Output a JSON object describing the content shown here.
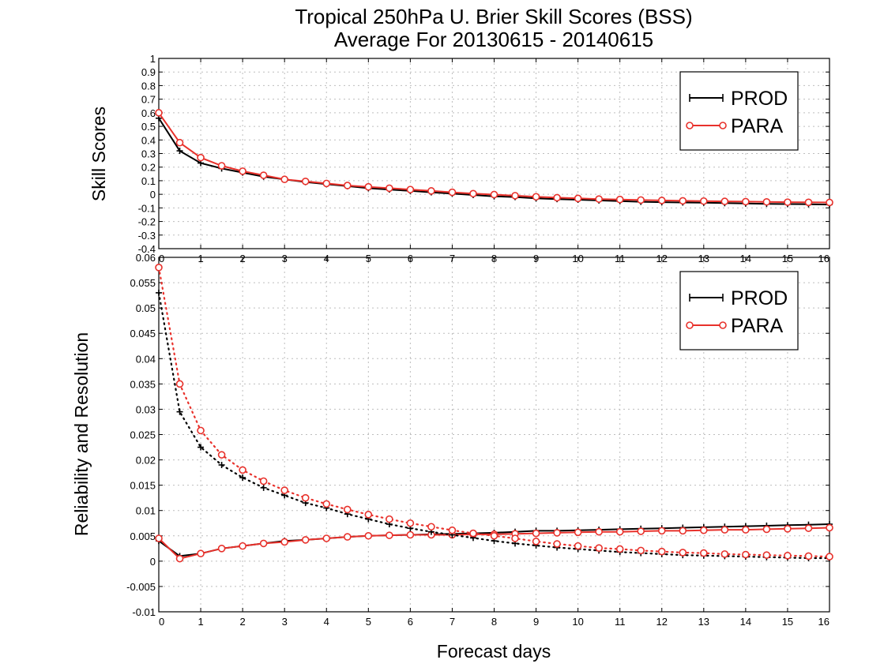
{
  "title_line1": "Tropical 250hPa U. Brier Skill Scores (BSS)",
  "title_line2": "Average For 20130615 - 20140615",
  "xlabel": "Forecast days",
  "colors": {
    "prod": "#000000",
    "para": "#e8312b",
    "grid": "#bdbdbd"
  },
  "chart_data": [
    {
      "type": "line",
      "ylabel": "Skill Scores",
      "xlim": [
        0,
        16
      ],
      "ylim": [
        -0.4,
        1
      ],
      "yticks": [
        -0.4,
        -0.3,
        -0.2,
        -0.1,
        0,
        0.1,
        0.2,
        0.3,
        0.4,
        0.5,
        0.6,
        0.7,
        0.8,
        0.9,
        1
      ],
      "ytick_labels": [
        "-0.4",
        "-0.3",
        "-0.2",
        "-0.1",
        "0",
        "0.1",
        "0.2",
        "0.3",
        "0.4",
        "0.5",
        "0.6",
        "0.7",
        "0.8",
        "0.9",
        "1"
      ],
      "xticks": [
        0,
        1,
        2,
        3,
        4,
        5,
        6,
        7,
        8,
        9,
        10,
        11,
        12,
        13,
        14,
        15,
        16
      ],
      "xtick_labels": [
        "0",
        "1",
        "2",
        "3",
        "4",
        "5",
        "6",
        "7",
        "8",
        "9",
        "10",
        "11",
        "12",
        "13",
        "14",
        "15",
        "16"
      ],
      "grid": true,
      "legend_position": "top-right",
      "x": [
        0,
        0.5,
        1,
        1.5,
        2,
        2.5,
        3,
        3.5,
        4,
        4.5,
        5,
        5.5,
        6,
        6.5,
        7,
        7.5,
        8,
        8.5,
        9,
        9.5,
        10,
        10.5,
        11,
        11.5,
        12,
        12.5,
        13,
        13.5,
        14,
        14.5,
        15,
        15.5,
        16
      ],
      "series": [
        {
          "name": "PROD",
          "style": "solid-plus",
          "values": [
            0.56,
            0.32,
            0.23,
            0.19,
            0.16,
            0.13,
            0.11,
            0.09,
            0.075,
            0.06,
            0.045,
            0.035,
            0.025,
            0.015,
            0.005,
            -0.005,
            -0.015,
            -0.02,
            -0.03,
            -0.035,
            -0.04,
            -0.045,
            -0.05,
            -0.055,
            -0.058,
            -0.06,
            -0.062,
            -0.065,
            -0.068,
            -0.07,
            -0.072,
            -0.073,
            -0.075
          ]
        },
        {
          "name": "PARA",
          "style": "solid-circle",
          "values": [
            0.6,
            0.38,
            0.27,
            0.21,
            0.17,
            0.14,
            0.11,
            0.095,
            0.08,
            0.065,
            0.055,
            0.045,
            0.035,
            0.025,
            0.015,
            0.005,
            -0.002,
            -0.01,
            -0.018,
            -0.025,
            -0.03,
            -0.035,
            -0.038,
            -0.042,
            -0.045,
            -0.048,
            -0.05,
            -0.052,
            -0.054,
            -0.056,
            -0.058,
            -0.059,
            -0.06
          ]
        }
      ]
    },
    {
      "type": "line",
      "ylabel": "Reliability and Resolution",
      "xlim": [
        0,
        16
      ],
      "ylim": [
        -0.01,
        0.06
      ],
      "yticks": [
        -0.01,
        -0.005,
        0,
        0.005,
        0.01,
        0.015,
        0.02,
        0.025,
        0.03,
        0.035,
        0.04,
        0.045,
        0.05,
        0.055,
        0.06
      ],
      "ytick_labels": [
        "-0.01",
        "-0.005",
        "0",
        "0.005",
        "0.01",
        "0.015",
        "0.02",
        "0.025",
        "0.03",
        "0.035",
        "0.04",
        "0.045",
        "0.05",
        "0.055",
        "0.06"
      ],
      "xticks": [
        0,
        1,
        2,
        3,
        4,
        5,
        6,
        7,
        8,
        9,
        10,
        11,
        12,
        13,
        14,
        15,
        16
      ],
      "xtick_labels": [
        "0",
        "1",
        "2",
        "3",
        "4",
        "5",
        "6",
        "7",
        "8",
        "9",
        "10",
        "11",
        "12",
        "13",
        "14",
        "15",
        "16"
      ],
      "grid": true,
      "legend_position": "top-right",
      "x": [
        0,
        0.5,
        1,
        1.5,
        2,
        2.5,
        3,
        3.5,
        4,
        4.5,
        5,
        5.5,
        6,
        6.5,
        7,
        7.5,
        8,
        8.5,
        9,
        9.5,
        10,
        10.5,
        11,
        11.5,
        12,
        12.5,
        13,
        13.5,
        14,
        14.5,
        15,
        15.5,
        16
      ],
      "series": [
        {
          "name": "PROD",
          "style": "solid-plus",
          "values": [
            0.004,
            0.001,
            0.0015,
            0.0025,
            0.003,
            0.0035,
            0.004,
            0.0042,
            0.0045,
            0.0048,
            0.005,
            0.0051,
            0.0052,
            0.0053,
            0.0054,
            0.0055,
            0.0056,
            0.0058,
            0.006,
            0.006,
            0.0061,
            0.0062,
            0.0063,
            0.0064,
            0.0065,
            0.0066,
            0.0067,
            0.0068,
            0.0069,
            0.007,
            0.0071,
            0.0072,
            0.0073
          ]
        },
        {
          "name": "PARA",
          "style": "solid-circle",
          "values": [
            0.0045,
            0.0005,
            0.0015,
            0.0025,
            0.003,
            0.0035,
            0.0038,
            0.0042,
            0.0045,
            0.0048,
            0.005,
            0.0051,
            0.0052,
            0.0052,
            0.0052,
            0.0053,
            0.0053,
            0.0054,
            0.0055,
            0.0056,
            0.0057,
            0.0058,
            0.0058,
            0.0059,
            0.006,
            0.006,
            0.0061,
            0.0062,
            0.0062,
            0.0063,
            0.0064,
            0.0065,
            0.0066
          ]
        },
        {
          "name": "PROD",
          "style": "dotted-plus",
          "values": [
            0.053,
            0.0295,
            0.0225,
            0.019,
            0.0165,
            0.0145,
            0.013,
            0.0115,
            0.0105,
            0.0093,
            0.0083,
            0.0073,
            0.0065,
            0.0058,
            0.0052,
            0.0046,
            0.004,
            0.0035,
            0.0031,
            0.0027,
            0.0024,
            0.0021,
            0.0018,
            0.0016,
            0.0014,
            0.0012,
            0.0011,
            0.001,
            0.0009,
            0.0008,
            0.0007,
            0.0006,
            0.0006
          ]
        },
        {
          "name": "PARA",
          "style": "dotted-circle",
          "values": [
            0.058,
            0.035,
            0.0258,
            0.021,
            0.018,
            0.0158,
            0.014,
            0.0125,
            0.0113,
            0.0102,
            0.0092,
            0.0083,
            0.0075,
            0.0068,
            0.0061,
            0.0055,
            0.005,
            0.0045,
            0.0039,
            0.0034,
            0.003,
            0.0026,
            0.0024,
            0.0021,
            0.0019,
            0.0017,
            0.0016,
            0.0014,
            0.0013,
            0.0012,
            0.0011,
            0.001,
            0.0009
          ]
        }
      ]
    }
  ]
}
